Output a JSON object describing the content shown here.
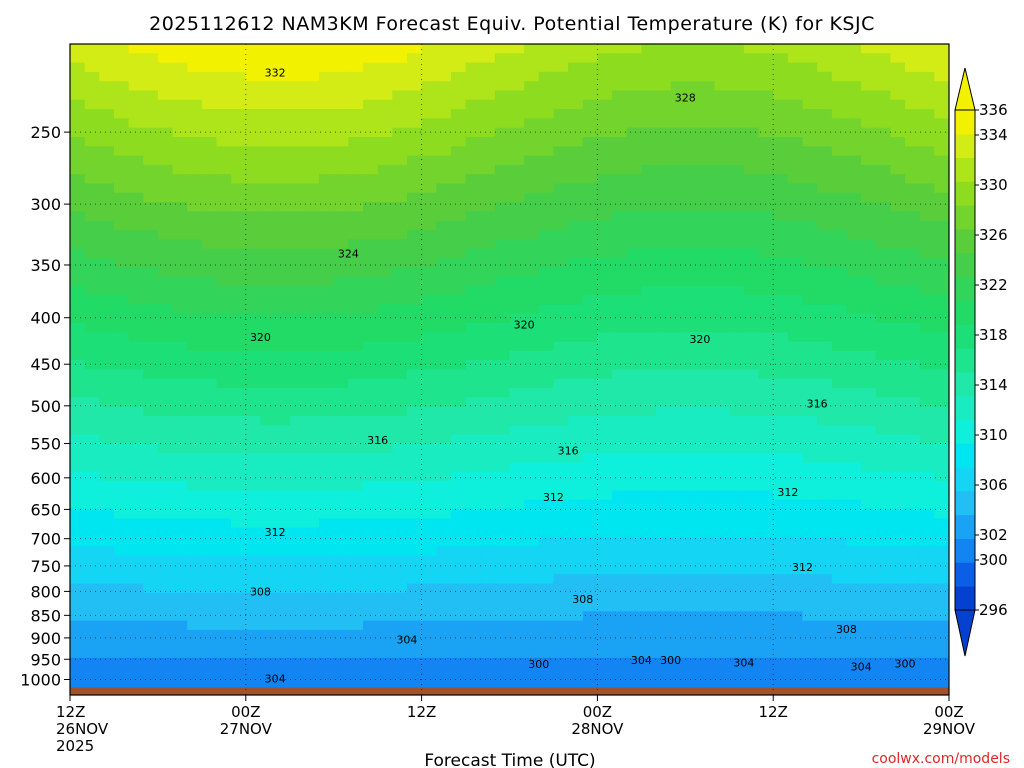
{
  "chart_data": {
    "type": "heatmap",
    "title": "2025112612 NAM3KM Forecast Equiv. Potential Temperature (K) for KSJC",
    "xlabel": "Forecast Time (UTC)",
    "ylabel": "",
    "x_ticks": [
      {
        "hour": 0,
        "lines": [
          "12Z",
          "26NOV",
          "2025"
        ]
      },
      {
        "hour": 12,
        "lines": [
          "00Z",
          "27NOV"
        ]
      },
      {
        "hour": 24,
        "lines": [
          "12Z",
          ""
        ]
      },
      {
        "hour": 36,
        "lines": [
          "00Z",
          "28NOV"
        ]
      },
      {
        "hour": 48,
        "lines": [
          "12Z",
          ""
        ]
      },
      {
        "hour": 60,
        "lines": [
          "00Z",
          "29NOV"
        ]
      }
    ],
    "xlim_hours": [
      0,
      60
    ],
    "y_ticks": [
      250,
      300,
      350,
      400,
      450,
      500,
      550,
      600,
      650,
      700,
      750,
      800,
      850,
      900,
      950,
      1000
    ],
    "ylim_hPa": [
      1040,
      200
    ],
    "y_scale": "log-pressure",
    "grid": true,
    "levels": [
      296,
      298,
      300,
      302,
      304,
      306,
      308,
      310,
      312,
      314,
      316,
      318,
      320,
      322,
      324,
      326,
      328,
      330,
      332,
      334,
      336
    ],
    "colorbar_labels": [
      336,
      334,
      330,
      326,
      322,
      318,
      314,
      310,
      306,
      302,
      300,
      296
    ],
    "colors": [
      "#0541d0",
      "#0a5fe6",
      "#1285f2",
      "#1aa3f5",
      "#22bff5",
      "#15d5f5",
      "#00e6f0",
      "#0ef0dc",
      "#18ecc0",
      "#20e8a8",
      "#1ee48e",
      "#1cdf78",
      "#22da66",
      "#32d45a",
      "#45ce4a",
      "#5ace3a",
      "#72d42c",
      "#8edc20",
      "#aee41a",
      "#d4ec16",
      "#f2f200"
    ],
    "ground_color": "#a0522d",
    "sfc_pressure_hPa": 1010,
    "contour_labels": [
      {
        "value": "332",
        "hour": 14,
        "p": 215
      },
      {
        "value": "328",
        "hour": 42,
        "p": 229
      },
      {
        "value": "324",
        "hour": 19,
        "p": 340
      },
      {
        "value": "320",
        "hour": 13,
        "p": 420
      },
      {
        "value": "320",
        "hour": 31,
        "p": 407
      },
      {
        "value": "320",
        "hour": 43,
        "p": 422
      },
      {
        "value": "316",
        "hour": 21,
        "p": 545
      },
      {
        "value": "316",
        "hour": 34,
        "p": 560
      },
      {
        "value": "316",
        "hour": 51,
        "p": 497
      },
      {
        "value": "312",
        "hour": 14,
        "p": 688
      },
      {
        "value": "312",
        "hour": 33,
        "p": 630
      },
      {
        "value": "312",
        "hour": 49,
        "p": 622
      },
      {
        "value": "312",
        "hour": 50,
        "p": 752
      },
      {
        "value": "308",
        "hour": 13,
        "p": 800
      },
      {
        "value": "308",
        "hour": 35,
        "p": 816
      },
      {
        "value": "308",
        "hour": 53,
        "p": 880
      },
      {
        "value": "304",
        "hour": 23,
        "p": 904
      },
      {
        "value": "304",
        "hour": 14,
        "p": 997
      },
      {
        "value": "300",
        "hour": 32,
        "p": 961
      },
      {
        "value": "304",
        "hour": 39,
        "p": 952
      },
      {
        "value": "300",
        "hour": 41,
        "p": 952
      },
      {
        "value": "304",
        "hour": 46,
        "p": 958
      },
      {
        "value": "304",
        "hour": 54,
        "p": 967
      },
      {
        "value": "300",
        "hour": 57,
        "p": 960
      }
    ]
  },
  "credit": "coolwx.com/models"
}
